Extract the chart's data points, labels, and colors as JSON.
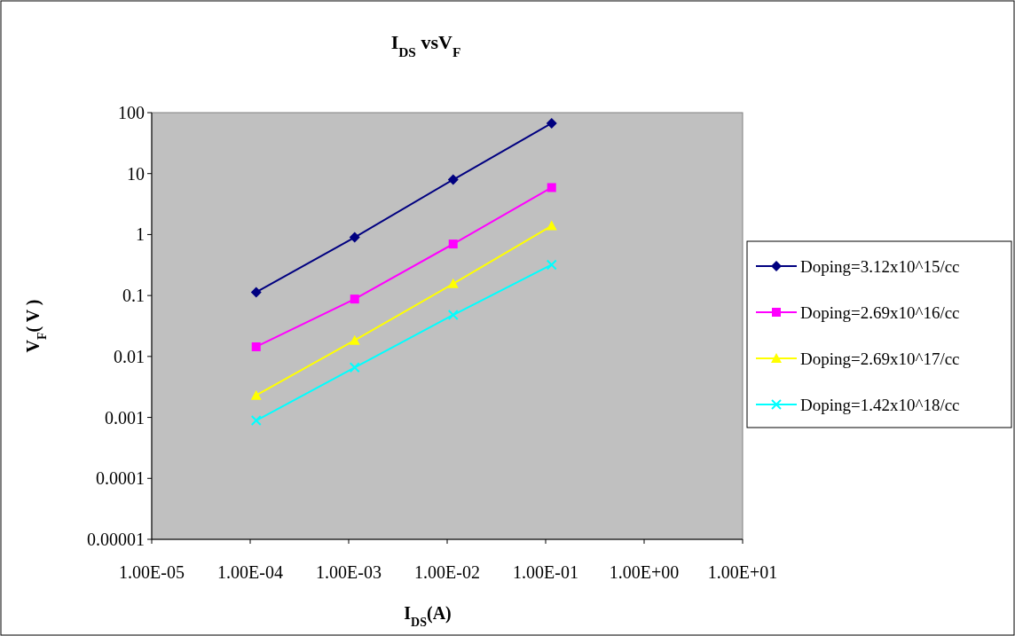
{
  "chart_data": {
    "type": "line",
    "title": "I$_{DS}$ vsV$_{F}$",
    "xlabel": "I$_{DS}$(A)",
    "ylabel": "V$_{F}$( V )",
    "log": "xy",
    "grid": false,
    "legend": "right",
    "x": [
      0.000115,
      0.00115,
      0.0115,
      0.115
    ],
    "xlim": [
      1e-05,
      10
    ],
    "xticks": [
      {
        "value": 1e-05,
        "label": "1.00E-05"
      },
      {
        "value": 0.0001,
        "label": "1.00E-04"
      },
      {
        "value": 0.001,
        "label": "1.00E-03"
      },
      {
        "value": 0.01,
        "label": "1.00E-02"
      },
      {
        "value": 0.1,
        "label": "1.00E-01"
      },
      {
        "value": 1,
        "label": "1.00E+00"
      },
      {
        "value": 10,
        "label": "1.00E+01"
      }
    ],
    "ylim": [
      1e-05,
      100
    ],
    "yticks": [
      {
        "value": 1e-05,
        "label": "0.00001"
      },
      {
        "value": 0.0001,
        "label": "0.0001"
      },
      {
        "value": 0.001,
        "label": "0.001"
      },
      {
        "value": 0.01,
        "label": "0.01"
      },
      {
        "value": 0.1,
        "label": "0.1"
      },
      {
        "value": 1,
        "label": "1"
      },
      {
        "value": 10,
        "label": "10"
      },
      {
        "value": 100,
        "label": "100"
      }
    ],
    "series": [
      {
        "name": "Doping=3.12x10^15/cc",
        "color": "#000080",
        "marker": "diamond",
        "values": [
          0.113,
          0.9,
          7.96,
          67
        ]
      },
      {
        "name": "Doping=2.69x10^16/cc",
        "color": "#ff00ff",
        "marker": "square",
        "values": [
          0.0144,
          0.0875,
          0.7,
          5.9
        ]
      },
      {
        "name": "Doping=2.69x10^17/cc",
        "color": "#ffff00",
        "marker": "triangle",
        "values": [
          0.0023,
          0.0184,
          0.156,
          1.39
        ]
      },
      {
        "name": "Doping=1.42x10^18/cc",
        "color": "#00ffff",
        "marker": "cross",
        "values": [
          0.00089,
          0.0066,
          0.048,
          0.32
        ]
      }
    ]
  }
}
